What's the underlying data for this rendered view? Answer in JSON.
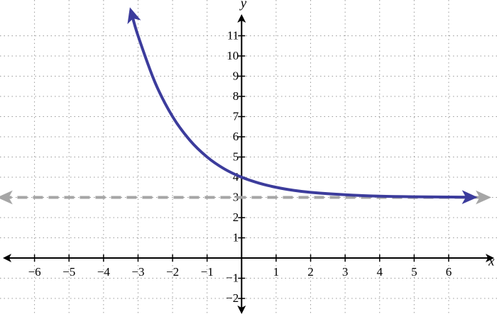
{
  "chart_data": {
    "type": "line",
    "x_label": "x",
    "y_label": "y",
    "xlim": [
      -7,
      7.4
    ],
    "ylim": [
      -2.77,
      12.77
    ],
    "xticks": [
      {
        "value": -6,
        "label": "−6"
      },
      {
        "value": -5,
        "label": "−5"
      },
      {
        "value": -4,
        "label": "−4"
      },
      {
        "value": -3,
        "label": "−3"
      },
      {
        "value": -2,
        "label": "−2"
      },
      {
        "value": -1,
        "label": "−1"
      },
      1,
      2,
      3,
      4,
      5,
      6
    ],
    "yticks": [
      {
        "value": -2,
        "label": "−2"
      },
      {
        "value": -1,
        "label": "−1"
      },
      1,
      2,
      3,
      4,
      5,
      6,
      7,
      8,
      9,
      10,
      11
    ],
    "grid": true,
    "series": [
      {
        "color": "#3c3c9c",
        "dashed": false,
        "x": [
          -3.2,
          -3,
          -2.5,
          -2,
          -1.5,
          -1,
          -0.5,
          0,
          0.5,
          1,
          1.5,
          2,
          3,
          4,
          5,
          6,
          6.7
        ],
        "values": [
          12.19,
          11,
          8.66,
          7,
          5.83,
          5,
          4.41,
          4,
          3.71,
          3.5,
          3.35,
          3.25,
          3.13,
          3.06,
          3.03,
          3.02,
          3.01
        ]
      },
      {
        "color": "#a6a6a6",
        "dashed": true,
        "x": [
          -6.95,
          7.1
        ],
        "values": [
          3,
          3
        ]
      }
    ]
  }
}
